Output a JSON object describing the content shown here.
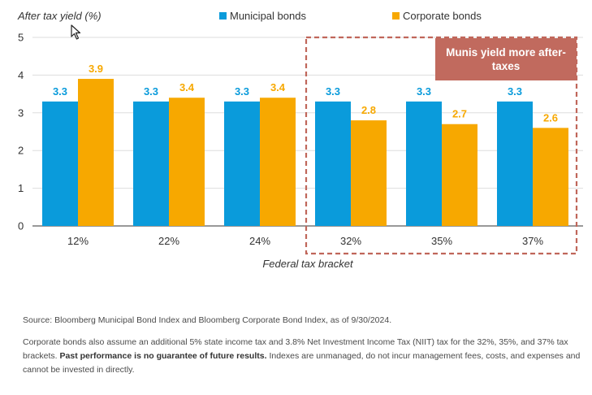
{
  "chart_data": {
    "type": "bar",
    "ylabel": "After tax yield (%)",
    "xlabel": "Federal tax bracket",
    "ylim": [
      0,
      5
    ],
    "yticks": [
      0,
      1,
      2,
      3,
      4,
      5
    ],
    "categories": [
      "12%",
      "22%",
      "24%",
      "32%",
      "35%",
      "37%"
    ],
    "series": [
      {
        "name": "Municipal bonds",
        "color": "#0A9BDB",
        "values": [
          3.3,
          3.3,
          3.3,
          3.3,
          3.3,
          3.3
        ],
        "labels": [
          "3.3",
          "3.3",
          "3.3",
          "3.3",
          "3.3",
          "3.3"
        ]
      },
      {
        "name": "Corporate bonds",
        "color": "#F7A800",
        "values": [
          3.9,
          3.4,
          3.4,
          2.8,
          2.7,
          2.6
        ],
        "labels": [
          "3.9",
          "3.4",
          "3.4",
          "2.8",
          "2.7",
          "2.6"
        ]
      }
    ],
    "highlight": {
      "categories": [
        "32%",
        "35%",
        "37%"
      ],
      "label_lines": [
        "Munis yield more after-",
        "taxes"
      ],
      "box_color": "#C0665A",
      "label_bg": "#C16A5E"
    },
    "grid": true,
    "legend": "top"
  },
  "notes": {
    "source": "Source: Bloomberg Municipal Bond Index and Bloomberg Corporate Bond Index, as of 9/30/2024.",
    "assumption": "Corporate bonds also assume an additional 5% state income tax and 3.8% Net Investment Income Tax (NIIT) tax for the 32%, 35%, and 37% tax brackets.",
    "bold": "Past performance is no guarantee of future results.",
    "rest": "Indexes are unmanaged, do not incur management fees, costs, and expenses and cannot be invested in directly."
  },
  "cursor_icon": "arrow-cursor-icon"
}
